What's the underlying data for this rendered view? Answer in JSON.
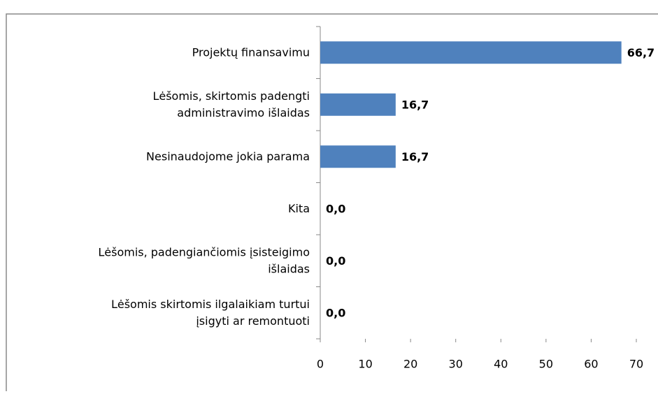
{
  "chart_data": {
    "type": "bar",
    "orientation": "horizontal",
    "categories": [
      "Projektų finansavimu",
      "Lėšomis, skirtomis padengti\nadministravimo išlaidas",
      "Nesinaudojome jokia parama",
      "Kita",
      "Lėšomis, padengiančiomis įsisteigimo\nišlaidas",
      "Lėšomis skirtomis ilgalaikiam turtui\nįsigyti ar remontuoti"
    ],
    "values": [
      66.7,
      16.7,
      16.7,
      0.0,
      0.0,
      0.0
    ],
    "value_labels": [
      "66,7",
      "16,7",
      "16,7",
      "0,0",
      "0,0",
      "0,0"
    ],
    "color": "#4f81bd",
    "xlim": [
      0,
      70
    ],
    "xticks": [
      0,
      10,
      20,
      30,
      40,
      50,
      60,
      70
    ],
    "grid": false
  }
}
